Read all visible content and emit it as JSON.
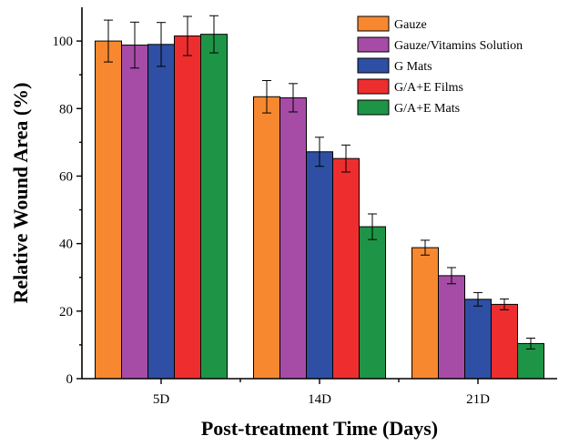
{
  "chart_data": {
    "type": "bar",
    "title": "",
    "xlabel": "Post-treatment Time (Days)",
    "ylabel": "Relative Wound Area (%)",
    "ylim": [
      0,
      110
    ],
    "yticks": [
      0,
      20,
      40,
      60,
      80,
      100
    ],
    "categories": [
      "5D",
      "14D",
      "21D"
    ],
    "legend_position": "top-right",
    "grid": false,
    "series": [
      {
        "name": "Gauze",
        "color": "#F7882F",
        "values": [
          100,
          83.5,
          38.8
        ],
        "errors": [
          6.2,
          4.8,
          2.2
        ]
      },
      {
        "name": "Gauze/Vitamins Solution",
        "color": "#A64CA6",
        "values": [
          98.8,
          83.2,
          30.5
        ],
        "errors": [
          6.8,
          4.2,
          2.4
        ]
      },
      {
        "name": "G Mats",
        "color": "#2E4FA3",
        "values": [
          99.0,
          67.2,
          23.5
        ],
        "errors": [
          6.5,
          4.3,
          2.0
        ]
      },
      {
        "name": "G/A+E Films",
        "color": "#EE2E2E",
        "values": [
          101.5,
          65.2,
          22.0
        ],
        "errors": [
          5.8,
          4.0,
          1.6
        ]
      },
      {
        "name": "G/A+E Mats",
        "color": "#1E9446",
        "values": [
          102.0,
          45.0,
          10.4
        ],
        "errors": [
          5.5,
          3.8,
          1.6
        ]
      }
    ]
  }
}
